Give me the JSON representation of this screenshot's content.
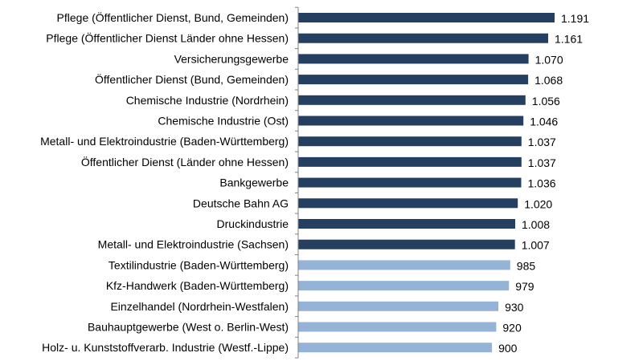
{
  "chart_data": {
    "type": "bar",
    "orientation": "horizontal",
    "title": "",
    "xlabel": "",
    "ylabel": "",
    "xlim": [
      0,
      1250
    ],
    "grid": false,
    "legend": "none",
    "colors": {
      "dark": "#243F60",
      "light": "#95B3D7",
      "axis": "#808080"
    },
    "categories": [
      "Pflege (Öffentlicher Dienst, Bund, Gemeinden)",
      "Pflege (Öffentlicher Dienst Länder ohne Hessen)",
      "Versicherungsgewerbe",
      "Öffentlicher Dienst (Bund, Gemeinden)",
      "Chemische Industrie (Nordrhein)",
      "Chemische Industrie (Ost)",
      "Metall- und Elektroindustrie (Baden-Württemberg)",
      "Öffentlicher Dienst (Länder ohne Hessen)",
      "Bankgewerbe",
      "Deutsche Bahn AG",
      "Druckindustrie",
      "Metall- und Elektroindustrie (Sachsen)",
      "Textilindustrie (Baden-Württemberg)",
      "Kfz-Handwerk (Baden-Württemberg)",
      "Einzelhandel (Nordrhein-Westfalen)",
      "Bauhauptgewerbe (West o. Berlin-West)",
      "Holz- u. Kunststoffverarb. Industrie (Westf.-Lippe)"
    ],
    "values": [
      1191,
      1161,
      1070,
      1068,
      1056,
      1046,
      1037,
      1037,
      1036,
      1020,
      1008,
      1007,
      985,
      979,
      930,
      920,
      900
    ],
    "value_labels": [
      "1.191",
      "1.161",
      "1.070",
      "1.068",
      "1.056",
      "1.046",
      "1.037",
      "1.037",
      "1.036",
      "1.020",
      "1.008",
      "1.007",
      "985",
      "979",
      "930",
      "920",
      "900"
    ],
    "bar_color_group": [
      "dark",
      "dark",
      "dark",
      "dark",
      "dark",
      "dark",
      "dark",
      "dark",
      "dark",
      "dark",
      "dark",
      "dark",
      "light",
      "light",
      "light",
      "light",
      "light"
    ]
  }
}
